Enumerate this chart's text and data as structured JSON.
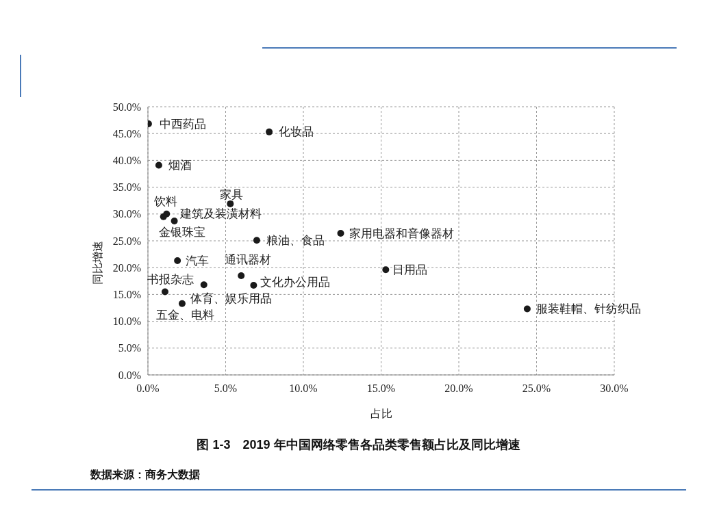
{
  "chart_data": {
    "type": "scatter",
    "title": "图 1-3　2019 年中国网络零售各品类零售额占比及同比增速",
    "xlabel": "占比",
    "ylabel": "同比增速",
    "x": [
      0.04,
      7.8,
      0.7,
      5.3,
      1.0,
      1.2,
      1.7,
      7.0,
      12.4,
      1.9,
      6.0,
      15.3,
      1.1,
      3.6,
      6.8,
      2.2,
      24.4
    ],
    "series": [
      {
        "color": "#1a1a1a",
        "values": [
          46.8,
          45.3,
          39.1,
          31.9,
          29.5,
          30.0,
          28.7,
          25.1,
          26.4,
          21.3,
          18.5,
          19.6,
          15.5,
          16.8,
          16.7,
          13.3,
          12.3
        ]
      }
    ],
    "marker": "circle",
    "grid": true,
    "legend": false,
    "xlim": [
      0,
      30
    ],
    "xticks": [
      {
        "value": 0,
        "label": "0.0%"
      },
      {
        "value": 5,
        "label": "5.0%"
      },
      {
        "value": 10,
        "label": "10.0%"
      },
      {
        "value": 15,
        "label": "15.0%"
      },
      {
        "value": 20,
        "label": "20.0%"
      },
      {
        "value": 25,
        "label": "25.0%"
      },
      {
        "value": 30,
        "label": "30.0%"
      }
    ],
    "ylim": [
      0,
      50
    ],
    "yticks": [
      {
        "value": 0,
        "label": "0.0%"
      },
      {
        "value": 5,
        "label": "5.0%"
      },
      {
        "value": 10,
        "label": "10.0%"
      },
      {
        "value": 15,
        "label": "15.0%"
      },
      {
        "value": 20,
        "label": "20.0%"
      },
      {
        "value": 25,
        "label": "25.0%"
      },
      {
        "value": 30,
        "label": "30.0%"
      },
      {
        "value": 35,
        "label": "35.0%"
      },
      {
        "value": 40,
        "label": "40.0%"
      },
      {
        "value": 45,
        "label": "45.0%"
      },
      {
        "value": 50,
        "label": "50.0%"
      }
    ],
    "annotations": [
      {
        "text": "中西药品",
        "x": 0.04,
        "y": 46.8
      },
      {
        "text": "化妆品",
        "x": 7.8,
        "y": 45.3
      },
      {
        "text": "烟酒",
        "x": 0.7,
        "y": 39.1
      },
      {
        "text": "家具",
        "x": 5.3,
        "y": 31.9
      },
      {
        "text": "饮料",
        "x": 1.0,
        "y": 29.5
      },
      {
        "text": "建筑及装潢材料",
        "x": 1.2,
        "y": 30.0
      },
      {
        "text": "金银珠宝",
        "x": 1.7,
        "y": 28.7
      },
      {
        "text": "粮油、食品",
        "x": 7.0,
        "y": 25.1
      },
      {
        "text": "家用电器和音像器材",
        "x": 12.4,
        "y": 26.4
      },
      {
        "text": "汽车",
        "x": 1.9,
        "y": 21.3
      },
      {
        "text": "通讯器材",
        "x": 6.0,
        "y": 18.5
      },
      {
        "text": "日用品",
        "x": 15.3,
        "y": 19.6
      },
      {
        "text": "书报杂志",
        "x": 1.1,
        "y": 15.5
      },
      {
        "text": "体育、娱乐用品",
        "x": 3.6,
        "y": 16.8
      },
      {
        "text": "文化办公用品",
        "x": 6.8,
        "y": 16.7
      },
      {
        "text": "五金、电料",
        "x": 2.2,
        "y": 13.3
      },
      {
        "text": "服装鞋帽、针纺织品",
        "x": 24.4,
        "y": 12.3
      },
      "数据来源：商务大数据"
    ]
  }
}
